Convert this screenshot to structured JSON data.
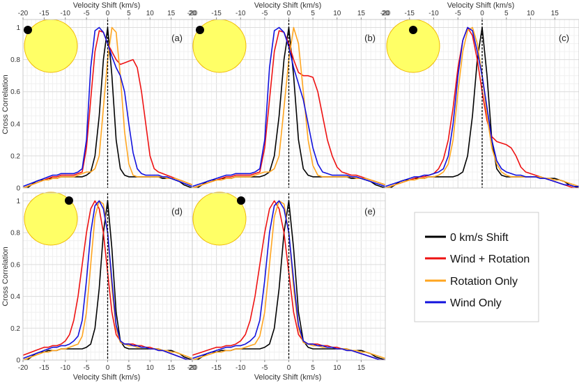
{
  "colors": {
    "zero_shift": "#000000",
    "wind_rotation": "#ee1111",
    "rotation_only": "#ffa51f",
    "wind_only": "#1111dd",
    "star_fill": "#ffff66",
    "star_edge": "#f0b800"
  },
  "chart_data": {
    "type": "line",
    "xlabel": "Velocity Shift (km/s)",
    "ylabel": "Cross Correlation",
    "xlim": [
      -20,
      20
    ],
    "ylim": [
      0,
      1.05
    ],
    "x_ticks": [
      "-20",
      "-15",
      "-10",
      "-5",
      "0",
      "5",
      "10",
      "15",
      "20"
    ],
    "y_ticks": [
      "0",
      "0.2",
      "0.4",
      "0.6",
      "0.8",
      "1"
    ],
    "x": [
      -20,
      -19,
      -18,
      -17,
      -16,
      -15,
      -14,
      -13,
      -12,
      -11,
      -10,
      -9,
      -8,
      -7,
      -6,
      -5,
      -4,
      -3,
      -2,
      -1,
      0,
      1,
      2,
      3,
      4,
      5,
      6,
      7,
      8,
      9,
      10,
      11,
      12,
      13,
      14,
      15,
      16,
      17,
      18,
      19,
      20
    ],
    "legend": {
      "entries": [
        "0 km/s Shift",
        "Wind + Rotation",
        "Rotation Only",
        "Wind Only"
      ],
      "placement": "lower-right"
    },
    "panels": [
      {
        "label": "(a)",
        "spot": "far left limb",
        "series": [
          {
            "name": "0 km/s Shift",
            "values": [
              0.0,
              0.0,
              0.02,
              0.04,
              0.05,
              0.05,
              0.06,
              0.06,
              0.06,
              0.07,
              0.07,
              0.07,
              0.07,
              0.07,
              0.07,
              0.08,
              0.1,
              0.2,
              0.45,
              0.8,
              1.0,
              0.7,
              0.3,
              0.12,
              0.08,
              0.07,
              0.07,
              0.07,
              0.07,
              0.07,
              0.07,
              0.07,
              0.07,
              0.06,
              0.06,
              0.06,
              0.05,
              0.04,
              0.02,
              0.01,
              0.0
            ]
          },
          {
            "name": "Wind + Rotation",
            "values": [
              0.0,
              0.01,
              0.02,
              0.03,
              0.04,
              0.05,
              0.06,
              0.07,
              0.07,
              0.08,
              0.08,
              0.08,
              0.08,
              0.09,
              0.1,
              0.25,
              0.55,
              0.85,
              0.98,
              0.97,
              0.9,
              0.85,
              0.8,
              0.77,
              0.78,
              0.79,
              0.8,
              0.75,
              0.6,
              0.4,
              0.2,
              0.12,
              0.1,
              0.09,
              0.08,
              0.07,
              0.06,
              0.05,
              0.04,
              0.03,
              0.02
            ]
          },
          {
            "name": "Rotation Only",
            "values": [
              0.0,
              0.01,
              0.02,
              0.03,
              0.04,
              0.05,
              0.05,
              0.06,
              0.06,
              0.07,
              0.07,
              0.07,
              0.07,
              0.08,
              0.09,
              0.1,
              0.1,
              0.12,
              0.2,
              0.5,
              0.8,
              1.0,
              0.97,
              0.7,
              0.35,
              0.15,
              0.08,
              0.07,
              0.07,
              0.07,
              0.07,
              0.07,
              0.07,
              0.07,
              0.06,
              0.06,
              0.06,
              0.05,
              0.04,
              0.03,
              0.02
            ]
          },
          {
            "name": "Wind Only",
            "values": [
              0.01,
              0.02,
              0.03,
              0.04,
              0.05,
              0.06,
              0.07,
              0.08,
              0.08,
              0.09,
              0.09,
              0.09,
              0.09,
              0.1,
              0.12,
              0.3,
              0.75,
              0.98,
              1.0,
              0.97,
              0.9,
              0.82,
              0.75,
              0.7,
              0.6,
              0.4,
              0.22,
              0.12,
              0.09,
              0.08,
              0.08,
              0.08,
              0.08,
              0.07,
              0.07,
              0.06,
              0.05,
              0.04,
              0.03,
              0.02,
              0.01
            ]
          }
        ]
      },
      {
        "label": "(b)",
        "spot": "left limb",
        "series": [
          {
            "name": "0 km/s Shift",
            "values": [
              0.0,
              0.0,
              0.02,
              0.04,
              0.05,
              0.05,
              0.06,
              0.06,
              0.06,
              0.07,
              0.07,
              0.07,
              0.07,
              0.07,
              0.07,
              0.08,
              0.1,
              0.2,
              0.45,
              0.8,
              1.0,
              0.7,
              0.3,
              0.12,
              0.08,
              0.07,
              0.07,
              0.07,
              0.07,
              0.07,
              0.07,
              0.07,
              0.07,
              0.06,
              0.06,
              0.06,
              0.05,
              0.04,
              0.02,
              0.01,
              0.0
            ]
          },
          {
            "name": "Wind + Rotation",
            "values": [
              0.0,
              0.01,
              0.02,
              0.03,
              0.04,
              0.05,
              0.06,
              0.07,
              0.07,
              0.08,
              0.08,
              0.08,
              0.08,
              0.09,
              0.1,
              0.25,
              0.55,
              0.85,
              0.98,
              0.97,
              0.9,
              0.8,
              0.72,
              0.7,
              0.7,
              0.69,
              0.6,
              0.45,
              0.3,
              0.2,
              0.13,
              0.1,
              0.09,
              0.08,
              0.08,
              0.07,
              0.06,
              0.05,
              0.04,
              0.03,
              0.02
            ]
          },
          {
            "name": "Rotation Only",
            "values": [
              0.0,
              0.01,
              0.02,
              0.03,
              0.04,
              0.05,
              0.05,
              0.06,
              0.06,
              0.07,
              0.07,
              0.07,
              0.07,
              0.08,
              0.09,
              0.1,
              0.1,
              0.12,
              0.2,
              0.5,
              0.8,
              1.0,
              0.9,
              0.6,
              0.3,
              0.14,
              0.08,
              0.07,
              0.07,
              0.07,
              0.07,
              0.07,
              0.07,
              0.07,
              0.06,
              0.06,
              0.06,
              0.05,
              0.04,
              0.03,
              0.02
            ]
          },
          {
            "name": "Wind Only",
            "values": [
              0.01,
              0.02,
              0.03,
              0.04,
              0.05,
              0.06,
              0.07,
              0.08,
              0.08,
              0.09,
              0.09,
              0.09,
              0.09,
              0.1,
              0.12,
              0.3,
              0.75,
              0.98,
              1.0,
              0.97,
              0.88,
              0.75,
              0.65,
              0.55,
              0.4,
              0.25,
              0.15,
              0.1,
              0.09,
              0.08,
              0.08,
              0.08,
              0.08,
              0.07,
              0.07,
              0.06,
              0.05,
              0.04,
              0.03,
              0.02,
              0.01
            ]
          }
        ]
      },
      {
        "label": "(c)",
        "spot": "near disk centre",
        "series": [
          {
            "name": "0 km/s Shift",
            "values": [
              0.0,
              0.0,
              0.02,
              0.04,
              0.05,
              0.05,
              0.06,
              0.06,
              0.06,
              0.07,
              0.07,
              0.07,
              0.07,
              0.07,
              0.07,
              0.08,
              0.1,
              0.2,
              0.45,
              0.8,
              1.0,
              0.7,
              0.3,
              0.12,
              0.08,
              0.07,
              0.07,
              0.07,
              0.07,
              0.07,
              0.07,
              0.07,
              0.07,
              0.06,
              0.06,
              0.06,
              0.05,
              0.04,
              0.02,
              0.01,
              0.0
            ]
          },
          {
            "name": "Wind + Rotation",
            "values": [
              0.0,
              0.01,
              0.02,
              0.03,
              0.04,
              0.05,
              0.06,
              0.07,
              0.07,
              0.08,
              0.09,
              0.12,
              0.18,
              0.3,
              0.5,
              0.75,
              0.92,
              1.0,
              0.95,
              0.8,
              0.6,
              0.42,
              0.32,
              0.29,
              0.28,
              0.27,
              0.25,
              0.2,
              0.13,
              0.1,
              0.09,
              0.08,
              0.07,
              0.06,
              0.05,
              0.04,
              0.03,
              0.02,
              0.01,
              0.0,
              0.0
            ]
          },
          {
            "name": "Rotation Only",
            "values": [
              0.0,
              0.01,
              0.02,
              0.03,
              0.04,
              0.05,
              0.05,
              0.06,
              0.06,
              0.07,
              0.07,
              0.08,
              0.1,
              0.15,
              0.3,
              0.6,
              0.85,
              0.98,
              1.0,
              0.9,
              0.7,
              0.45,
              0.25,
              0.15,
              0.1,
              0.08,
              0.07,
              0.07,
              0.07,
              0.07,
              0.07,
              0.07,
              0.07,
              0.06,
              0.06,
              0.05,
              0.05,
              0.04,
              0.03,
              0.02,
              0.01
            ]
          },
          {
            "name": "Wind Only",
            "values": [
              0.01,
              0.02,
              0.03,
              0.04,
              0.05,
              0.06,
              0.07,
              0.07,
              0.08,
              0.08,
              0.09,
              0.1,
              0.12,
              0.2,
              0.4,
              0.7,
              0.92,
              1.0,
              0.98,
              0.85,
              0.7,
              0.5,
              0.3,
              0.17,
              0.12,
              0.1,
              0.09,
              0.08,
              0.08,
              0.07,
              0.07,
              0.07,
              0.06,
              0.06,
              0.05,
              0.04,
              0.03,
              0.02,
              0.02,
              0.01,
              0.01
            ]
          }
        ]
      },
      {
        "label": "(d)",
        "spot": "upper right",
        "series": [
          {
            "name": "0 km/s Shift",
            "values": [
              0.0,
              0.0,
              0.02,
              0.04,
              0.05,
              0.05,
              0.06,
              0.06,
              0.06,
              0.07,
              0.07,
              0.07,
              0.07,
              0.07,
              0.07,
              0.08,
              0.1,
              0.2,
              0.45,
              0.8,
              1.0,
              0.7,
              0.3,
              0.12,
              0.08,
              0.07,
              0.07,
              0.07,
              0.07,
              0.07,
              0.07,
              0.07,
              0.07,
              0.06,
              0.06,
              0.06,
              0.05,
              0.04,
              0.02,
              0.01,
              0.0
            ]
          },
          {
            "name": "Wind + Rotation",
            "values": [
              0.03,
              0.04,
              0.05,
              0.06,
              0.07,
              0.08,
              0.08,
              0.09,
              0.09,
              0.1,
              0.12,
              0.16,
              0.25,
              0.4,
              0.6,
              0.8,
              0.95,
              1.0,
              0.95,
              0.8,
              0.55,
              0.3,
              0.16,
              0.12,
              0.1,
              0.1,
              0.1,
              0.09,
              0.09,
              0.08,
              0.08,
              0.07,
              0.06,
              0.06,
              0.05,
              0.04,
              0.03,
              0.02,
              0.01,
              0.0,
              0.0
            ]
          },
          {
            "name": "Rotation Only",
            "values": [
              0.0,
              0.01,
              0.02,
              0.03,
              0.04,
              0.05,
              0.05,
              0.06,
              0.06,
              0.07,
              0.07,
              0.08,
              0.09,
              0.1,
              0.15,
              0.3,
              0.6,
              0.9,
              1.0,
              0.98,
              0.8,
              0.45,
              0.2,
              0.11,
              0.1,
              0.09,
              0.09,
              0.08,
              0.08,
              0.08,
              0.07,
              0.07,
              0.07,
              0.06,
              0.06,
              0.05,
              0.05,
              0.04,
              0.03,
              0.02,
              0.01
            ]
          },
          {
            "name": "Wind Only",
            "values": [
              0.01,
              0.02,
              0.03,
              0.04,
              0.05,
              0.06,
              0.07,
              0.08,
              0.08,
              0.09,
              0.09,
              0.1,
              0.12,
              0.15,
              0.25,
              0.5,
              0.8,
              0.97,
              1.0,
              0.95,
              0.8,
              0.5,
              0.22,
              0.12,
              0.1,
              0.1,
              0.09,
              0.09,
              0.08,
              0.08,
              0.07,
              0.07,
              0.06,
              0.06,
              0.05,
              0.04,
              0.03,
              0.02,
              0.01,
              0.0,
              0.0
            ]
          }
        ]
      },
      {
        "label": "(e)",
        "spot": "right limb",
        "series": [
          {
            "name": "0 km/s Shift",
            "values": [
              0.0,
              0.0,
              0.02,
              0.04,
              0.05,
              0.05,
              0.06,
              0.06,
              0.06,
              0.07,
              0.07,
              0.07,
              0.07,
              0.07,
              0.07,
              0.08,
              0.1,
              0.2,
              0.45,
              0.8,
              1.0,
              0.7,
              0.3,
              0.12,
              0.08,
              0.07,
              0.07,
              0.07,
              0.07,
              0.07,
              0.07,
              0.07,
              0.07,
              0.06,
              0.06,
              0.06,
              0.05,
              0.04,
              0.02,
              0.01,
              0.0
            ]
          },
          {
            "name": "Wind + Rotation",
            "values": [
              0.03,
              0.04,
              0.05,
              0.06,
              0.07,
              0.08,
              0.08,
              0.09,
              0.09,
              0.1,
              0.12,
              0.16,
              0.25,
              0.4,
              0.6,
              0.8,
              0.95,
              1.0,
              0.95,
              0.8,
              0.55,
              0.3,
              0.16,
              0.12,
              0.1,
              0.1,
              0.1,
              0.09,
              0.09,
              0.08,
              0.08,
              0.07,
              0.06,
              0.06,
              0.05,
              0.04,
              0.03,
              0.02,
              0.01,
              0.0,
              0.0
            ]
          },
          {
            "name": "Rotation Only",
            "values": [
              0.0,
              0.01,
              0.02,
              0.03,
              0.04,
              0.05,
              0.05,
              0.06,
              0.06,
              0.07,
              0.07,
              0.08,
              0.09,
              0.1,
              0.15,
              0.3,
              0.6,
              0.9,
              1.0,
              0.98,
              0.8,
              0.45,
              0.2,
              0.11,
              0.1,
              0.09,
              0.09,
              0.08,
              0.08,
              0.08,
              0.07,
              0.07,
              0.07,
              0.06,
              0.06,
              0.05,
              0.05,
              0.04,
              0.03,
              0.02,
              0.01
            ]
          },
          {
            "name": "Wind Only",
            "values": [
              0.01,
              0.02,
              0.03,
              0.04,
              0.05,
              0.06,
              0.07,
              0.08,
              0.08,
              0.09,
              0.09,
              0.1,
              0.12,
              0.15,
              0.25,
              0.5,
              0.8,
              0.97,
              1.0,
              0.95,
              0.8,
              0.5,
              0.22,
              0.12,
              0.1,
              0.1,
              0.09,
              0.09,
              0.08,
              0.08,
              0.07,
              0.07,
              0.06,
              0.06,
              0.05,
              0.04,
              0.03,
              0.02,
              0.01,
              0.0,
              0.0
            ]
          }
        ]
      }
    ]
  }
}
